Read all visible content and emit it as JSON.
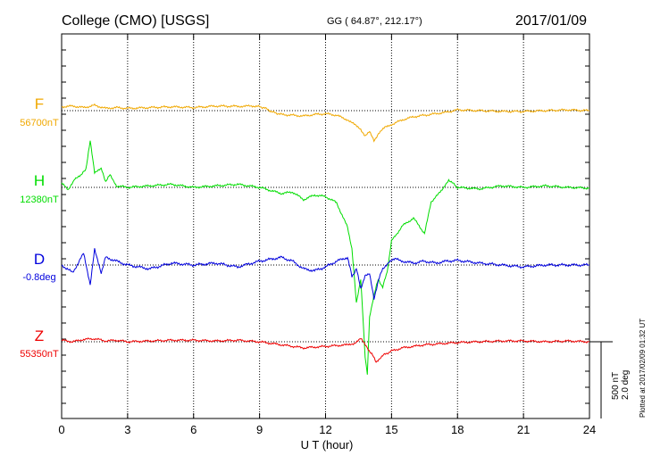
{
  "header": {
    "station": "College (CMO)  [USGS]",
    "coords": "GG ( 64.87°, 212.17°)",
    "date": "2017/01/09"
  },
  "footer_note": "Plotted at 2017/02/09 01:32 UT",
  "scale": {
    "nT": "500 nT",
    "deg": "2.0 deg"
  },
  "colors": {
    "F": "#f0a800",
    "H": "#00dd00",
    "D": "#0000dd",
    "Z": "#ee0000",
    "grid": "#000000"
  },
  "chart_data": {
    "type": "line",
    "xlabel": "U T (hour)",
    "xlim": [
      0,
      24
    ],
    "xticks": [
      "0",
      "3",
      "6",
      "9",
      "12",
      "15",
      "18",
      "21",
      "24"
    ],
    "series": [
      {
        "name": "F",
        "baseline_label": "56700nT",
        "unit": "nT",
        "x": [
          0,
          0.5,
          1,
          1.5,
          2,
          2.5,
          3,
          4,
          5,
          6,
          7,
          8,
          8.8,
          9.2,
          9.6,
          10,
          10.5,
          11,
          11.5,
          12,
          12.5,
          13,
          13.3,
          13.6,
          13.8,
          14,
          14.2,
          14.4,
          14.7,
          15,
          15.5,
          16,
          16.5,
          17,
          17.5,
          18,
          19,
          20,
          21,
          22,
          23,
          24
        ],
        "values": [
          25,
          30,
          20,
          35,
          15,
          20,
          15,
          20,
          25,
          20,
          30,
          28,
          30,
          20,
          -10,
          -25,
          -30,
          -35,
          -25,
          -20,
          -30,
          -60,
          -90,
          -120,
          -170,
          -130,
          -200,
          -150,
          -110,
          -90,
          -60,
          -40,
          -30,
          -20,
          -10,
          5,
          0,
          -5,
          -5,
          0,
          5,
          0
        ]
      },
      {
        "name": "H",
        "baseline_label": "12380nT",
        "unit": "nT",
        "x": [
          0,
          0.3,
          0.6,
          0.9,
          1.1,
          1.3,
          1.5,
          1.8,
          2.0,
          2.2,
          2.5,
          3,
          4,
          5,
          6,
          7,
          8,
          9,
          9.5,
          10,
          10.5,
          11,
          11.5,
          12,
          12.5,
          13,
          13.2,
          13.4,
          13.6,
          13.8,
          13.9,
          14.0,
          14.2,
          14.4,
          14.6,
          14.8,
          15,
          15.5,
          16,
          16.5,
          16.8,
          17,
          17.3,
          17.6,
          18,
          19,
          20,
          21,
          22,
          23,
          24
        ],
        "values": [
          30,
          -20,
          60,
          80,
          120,
          300,
          100,
          120,
          40,
          80,
          10,
          0,
          10,
          20,
          0,
          10,
          20,
          0,
          -20,
          -40,
          -30,
          -80,
          -50,
          -60,
          -100,
          -260,
          -400,
          -750,
          -600,
          -1100,
          -1220,
          -850,
          -700,
          -600,
          -650,
          -550,
          -350,
          -250,
          -200,
          -300,
          -100,
          -60,
          -20,
          50,
          0,
          -10,
          10,
          0,
          10,
          0,
          -5
        ]
      },
      {
        "name": "D",
        "baseline_label": "-0.8deg",
        "unit": "deg",
        "x": [
          0,
          0.5,
          1,
          1.3,
          1.5,
          1.8,
          2,
          2.5,
          3,
          4,
          5,
          6,
          7,
          8,
          9,
          9.5,
          10,
          10.5,
          11,
          11.5,
          12,
          12.5,
          13,
          13.2,
          13.4,
          13.6,
          13.8,
          14,
          14.2,
          14.4,
          14.6,
          14.9,
          15.2,
          15.5,
          16,
          16.5,
          17,
          17.5,
          18,
          19,
          20,
          21,
          22,
          23,
          24
        ],
        "values": [
          0,
          -0.2,
          0.3,
          -0.5,
          0.4,
          -0.2,
          0.2,
          0.1,
          0,
          -0.1,
          0.05,
          0,
          0.05,
          -0.05,
          0.1,
          0.15,
          0.2,
          0.1,
          -0.1,
          -0.15,
          -0.05,
          0.1,
          0.2,
          -0.3,
          -0.1,
          -0.6,
          -0.3,
          -0.2,
          -0.9,
          -0.4,
          -0.1,
          0.1,
          0.15,
          0.1,
          0.05,
          0.1,
          0.05,
          0.1,
          0.12,
          0.05,
          0,
          -0.05,
          0,
          0,
          0
        ]
      },
      {
        "name": "Z",
        "baseline_label": "55350nT",
        "unit": "nT",
        "x": [
          0,
          0.5,
          1,
          1.5,
          2,
          2.5,
          3,
          4,
          5,
          6,
          7,
          8,
          9,
          9.5,
          10,
          10.5,
          11,
          11.5,
          12,
          12.5,
          13,
          13.3,
          13.6,
          13.9,
          14.1,
          14.3,
          14.6,
          15,
          15.5,
          16,
          16.5,
          17,
          17.5,
          18,
          19,
          20,
          21,
          22,
          23,
          24
        ],
        "values": [
          10,
          0,
          15,
          20,
          5,
          10,
          0,
          5,
          10,
          10,
          5,
          10,
          0,
          -10,
          -20,
          -30,
          -40,
          -35,
          -30,
          -25,
          -20,
          -10,
          20,
          -40,
          -80,
          -130,
          -90,
          -60,
          -40,
          -30,
          -20,
          -15,
          -10,
          -5,
          0,
          5,
          5,
          0,
          5,
          0
        ]
      }
    ]
  }
}
